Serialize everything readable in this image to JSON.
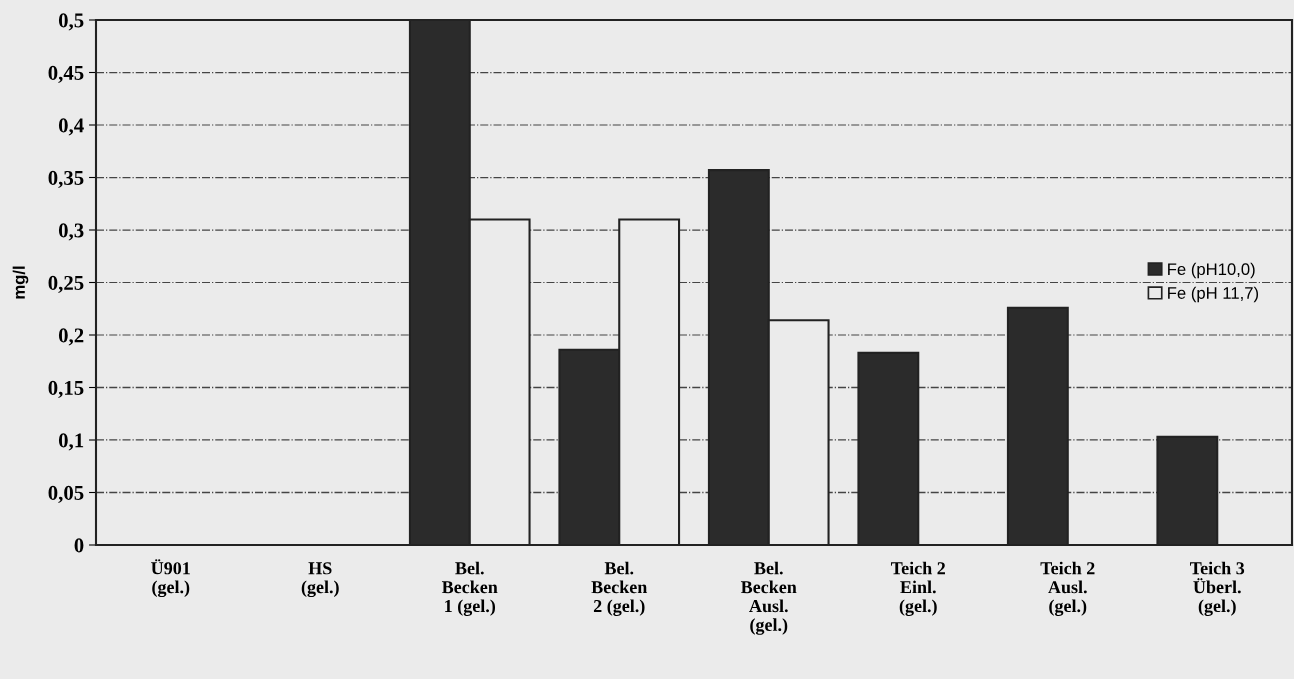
{
  "chart_data": {
    "type": "bar",
    "ylabel": "mg/l",
    "categories": [
      "Ü901\n(gel.)",
      "HS\n(gel.)",
      "Bel.\nBecken\n1 (gel.)",
      "Bel.\nBecken\n2 (gel.)",
      "Bel.\nBecken\nAusl.\n(gel.)",
      "Teich 2\nEinl.\n(gel.)",
      "Teich 2\nAusl.\n(gel.)",
      "Teich 3\nÜberl.\n(gel.)"
    ],
    "series": [
      {
        "name": "Fe (pH10,0)",
        "color": "#2b2b2b",
        "values": [
          null,
          null,
          0.5,
          0.186,
          0.357,
          0.183,
          0.226,
          0.103
        ]
      },
      {
        "name": "Fe (pH 11,7)",
        "color": "#ebebeb",
        "values": [
          null,
          null,
          0.31,
          0.31,
          0.214,
          null,
          null,
          null
        ]
      }
    ],
    "ylim": [
      0,
      0.5
    ],
    "yticks": [
      {
        "value": 0,
        "label": "0"
      },
      {
        "value": 0.05,
        "label": "0,05"
      },
      {
        "value": 0.1,
        "label": "0,1"
      },
      {
        "value": 0.15,
        "label": "0,15"
      },
      {
        "value": 0.2,
        "label": "0,2"
      },
      {
        "value": 0.25,
        "label": "0,25"
      },
      {
        "value": 0.3,
        "label": "0,3"
      },
      {
        "value": 0.35,
        "label": "0,35"
      },
      {
        "value": 0.4,
        "label": "0,4"
      },
      {
        "value": 0.45,
        "label": "0,45"
      },
      {
        "value": 0.5,
        "label": "0,5"
      }
    ],
    "grid": "y",
    "legend": "right"
  }
}
